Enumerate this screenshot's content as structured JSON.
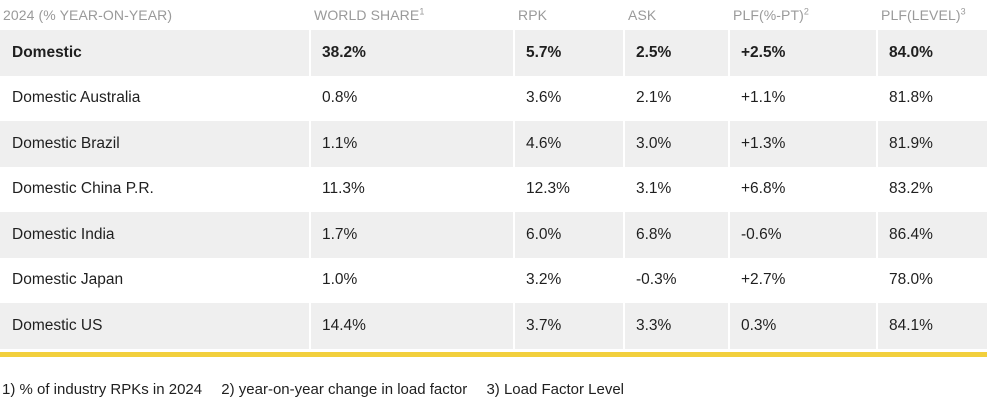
{
  "table": {
    "headers": [
      {
        "label": "2024 (% YEAR-ON-YEAR)",
        "sup": ""
      },
      {
        "label": "WORLD SHARE",
        "sup": "1"
      },
      {
        "label": "RPK",
        "sup": ""
      },
      {
        "label": "ASK",
        "sup": ""
      },
      {
        "label": "PLF(%-PT)",
        "sup": "2"
      },
      {
        "label": "PLF(LEVEL)",
        "sup": "3"
      }
    ],
    "rows": [
      [
        "Domestic",
        "38.2%",
        "5.7%",
        "2.5%",
        "+2.5%",
        "84.0%"
      ],
      [
        "Domestic Australia",
        "0.8%",
        "3.6%",
        "2.1%",
        "+1.1%",
        "81.8%"
      ],
      [
        "Domestic Brazil",
        "1.1%",
        "4.6%",
        "3.0%",
        "+1.3%",
        "81.9%"
      ],
      [
        "Domestic China P.R.",
        "11.3%",
        "12.3%",
        "3.1%",
        "+6.8%",
        "83.2%"
      ],
      [
        "Domestic India",
        "1.7%",
        "6.0%",
        "6.8%",
        "-0.6%",
        "86.4%"
      ],
      [
        "Domestic Japan",
        "1.0%",
        "3.2%",
        "-0.3%",
        "+2.7%",
        "78.0%"
      ],
      [
        "Domestic US",
        "14.4%",
        "3.7%",
        "3.3%",
        "0.3%",
        "84.1%"
      ]
    ]
  },
  "footnotes": [
    "1) % of industry RPKs in 2024",
    "2) year-on-year change in load factor",
    "3) Load Factor Level"
  ],
  "colors": {
    "accent_rule": "#f2cf3c",
    "row_shade": "#efefef",
    "header_text": "#9a9a9a"
  }
}
